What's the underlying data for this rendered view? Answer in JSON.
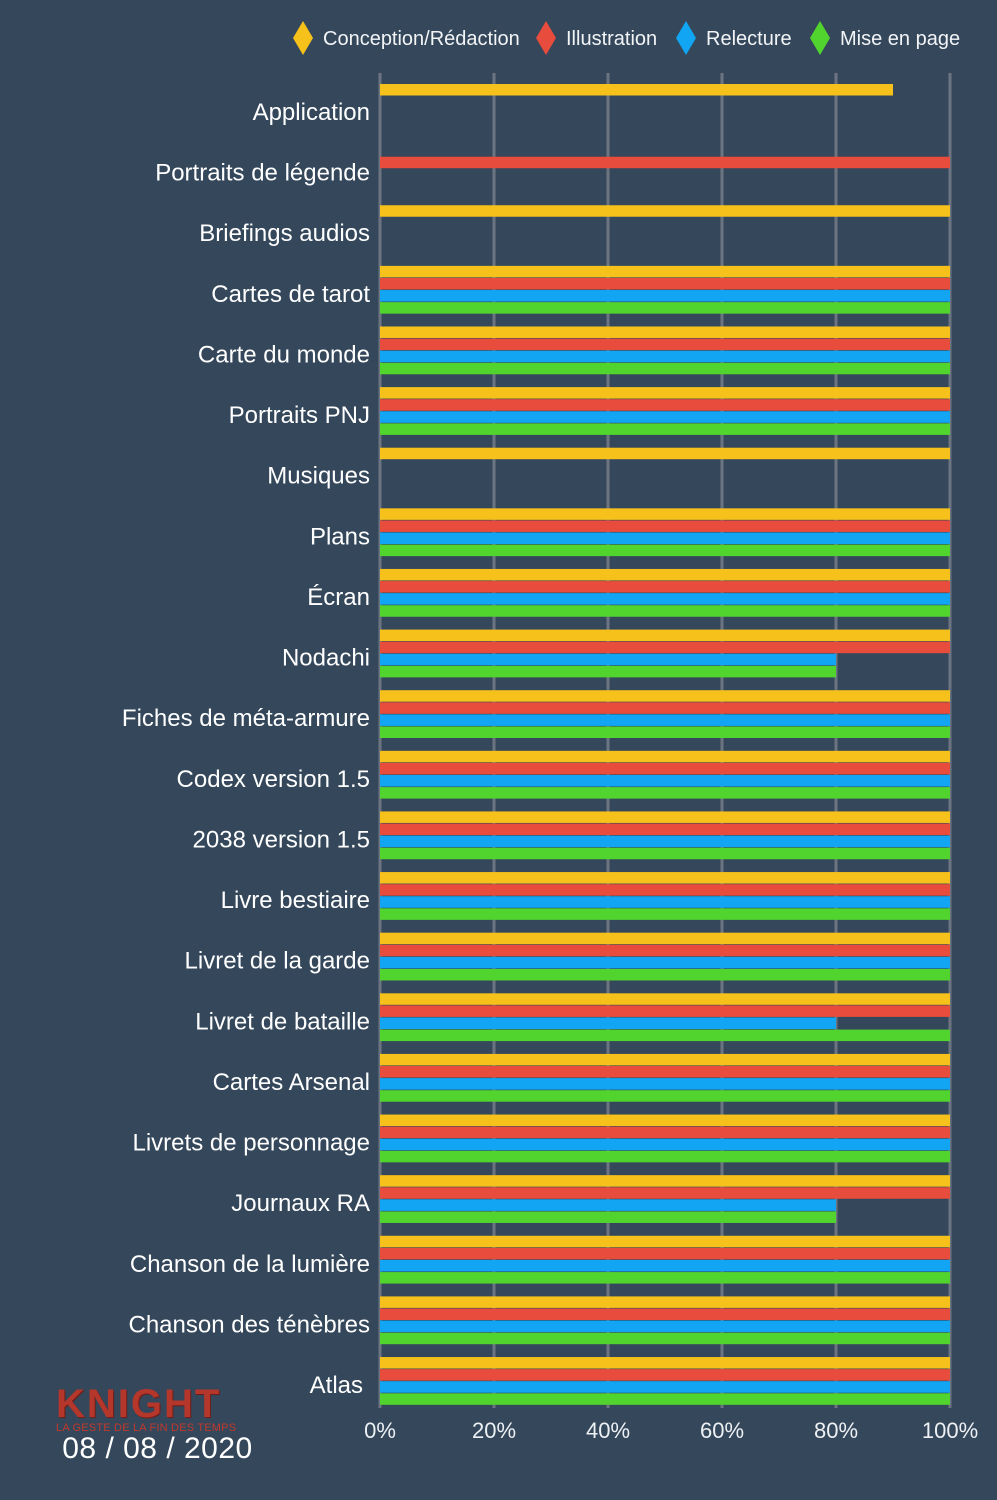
{
  "chart_data": {
    "type": "bar",
    "orientation": "horizontal",
    "title": "",
    "xlabel": "",
    "ylabel": "",
    "xlim": [
      0,
      100
    ],
    "x_ticks": [
      "0%",
      "20%",
      "40%",
      "60%",
      "80%",
      "100%"
    ],
    "grid": true,
    "legend_position": "top-right",
    "categories": [
      "Application",
      "Portraits de légende",
      "Briefings audios",
      "Cartes de tarot",
      "Carte du monde",
      "Portraits PNJ",
      "Musiques",
      "Plans",
      "Écran",
      "Nodachi",
      "Fiches de méta-armure",
      "Codex version 1.5",
      "2038 version 1.5",
      "Livre bestiaire",
      "Livret de la garde",
      "Livret de bataille",
      "Cartes Arsenal",
      "Livrets de personnage",
      "Journaux RA",
      "Chanson de la lumière",
      "Chanson des ténèbres",
      "Atlas"
    ],
    "series": [
      {
        "name": "Conception/Rédaction",
        "color": "#f6c11a",
        "values": [
          90,
          null,
          100,
          100,
          100,
          100,
          100,
          100,
          100,
          100,
          100,
          100,
          100,
          100,
          100,
          100,
          100,
          100,
          100,
          100,
          100,
          100
        ]
      },
      {
        "name": "Illustration",
        "color": "#e74c3c",
        "values": [
          null,
          100,
          null,
          100,
          100,
          100,
          null,
          100,
          100,
          100,
          100,
          100,
          100,
          100,
          100,
          100,
          100,
          100,
          100,
          100,
          100,
          100
        ]
      },
      {
        "name": "Relecture",
        "color": "#11a5f3",
        "values": [
          null,
          null,
          null,
          100,
          100,
          100,
          null,
          100,
          100,
          80,
          100,
          100,
          100,
          100,
          100,
          80,
          100,
          100,
          80,
          100,
          100,
          100
        ]
      },
      {
        "name": "Mise en page",
        "color": "#52d42e",
        "values": [
          null,
          null,
          null,
          100,
          100,
          100,
          null,
          100,
          100,
          80,
          100,
          100,
          100,
          100,
          100,
          100,
          100,
          100,
          80,
          100,
          100,
          100
        ]
      }
    ]
  },
  "logo": {
    "word": "KNIGHT",
    "subtitle": "LA GESTE DE LA FIN DES TEMPS"
  },
  "date": "08 / 08 / 2020",
  "colors": {
    "background": "#34475b",
    "grid": "#6b7480"
  }
}
